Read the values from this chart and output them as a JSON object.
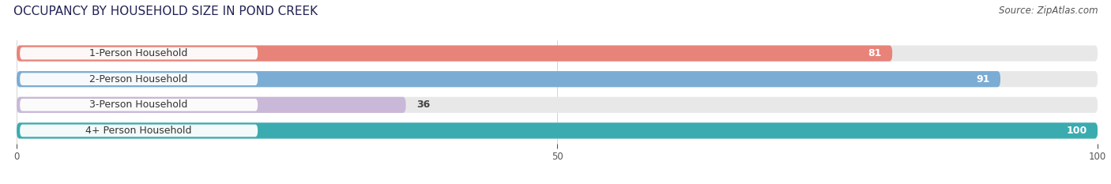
{
  "title": "OCCUPANCY BY HOUSEHOLD SIZE IN POND CREEK",
  "source": "Source: ZipAtlas.com",
  "categories": [
    "1-Person Household",
    "2-Person Household",
    "3-Person Household",
    "4+ Person Household"
  ],
  "values": [
    81,
    91,
    36,
    100
  ],
  "bar_colors": [
    "#E8837A",
    "#7BACD4",
    "#C9B8D8",
    "#3AACB0"
  ],
  "value_label_color_dark": "#555555",
  "value_label_color_light": "#ffffff",
  "xlim": [
    0,
    100
  ],
  "xticks": [
    0,
    50,
    100
  ],
  "background_color": "#ffffff",
  "bar_background_color": "#e8e8e8",
  "title_fontsize": 11,
  "source_fontsize": 8.5,
  "label_fontsize": 9,
  "value_fontsize": 9
}
